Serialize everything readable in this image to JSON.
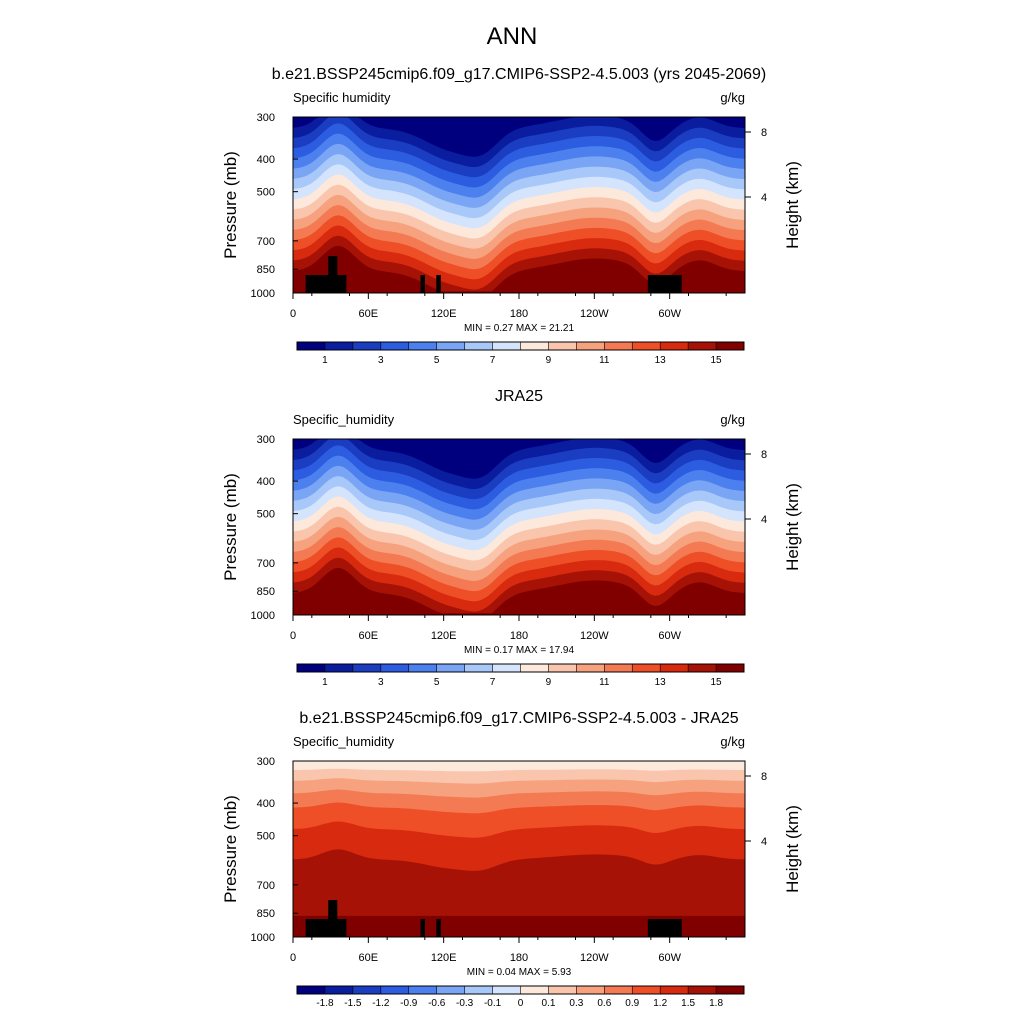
{
  "page": {
    "title": "ANN"
  },
  "chart_data": [
    {
      "type": "contour",
      "title": "b.e21.BSSP245cmip6.f09_g17.CMIP6-SSP2-4.5.003 (yrs 2045-2069)",
      "left_label": "Specific humidity",
      "right_label": "g/kg",
      "ylabel": "Pressure (mb)",
      "y2label": "Height (km)",
      "y_ticks": [
        "300",
        "400",
        "500",
        "700",
        "850",
        "1000"
      ],
      "y2_ticks": [
        "8",
        "4"
      ],
      "x_ticks": [
        "0",
        "60E",
        "120E",
        "180",
        "120W",
        "60W"
      ],
      "stats": "MIN =   0.27  MAX =  21.21",
      "field_type": "absolute",
      "colorbar": {
        "colors": [
          "#00007f",
          "#0a1d9e",
          "#1a3dc2",
          "#2c5ce0",
          "#4d80ef",
          "#7aa5f5",
          "#a8c8f9",
          "#d3e4fc",
          "#fde8dc",
          "#f9c6ad",
          "#f6a27f",
          "#f37a52",
          "#ee4f26",
          "#d72a0e",
          "#a61206",
          "#800000"
        ],
        "labels": [
          "1",
          "3",
          "5",
          "7",
          "9",
          "11",
          "13",
          "15"
        ],
        "label_positions": [
          1,
          3,
          5,
          7,
          9,
          11,
          13,
          15
        ]
      },
      "masked_regions": true
    },
    {
      "type": "contour",
      "title": "JRA25",
      "left_label": "Specific_humidity",
      "right_label": "g/kg",
      "ylabel": "Pressure (mb)",
      "y2label": "Height (km)",
      "y_ticks": [
        "300",
        "400",
        "500",
        "700",
        "850",
        "1000"
      ],
      "y2_ticks": [
        "8",
        "4"
      ],
      "x_ticks": [
        "0",
        "60E",
        "120E",
        "180",
        "120W",
        "60W"
      ],
      "stats": "MIN =   0.17  MAX =  17.94",
      "field_type": "absolute",
      "colorbar": {
        "colors": [
          "#00007f",
          "#0a1d9e",
          "#1a3dc2",
          "#2c5ce0",
          "#4d80ef",
          "#7aa5f5",
          "#a8c8f9",
          "#d3e4fc",
          "#fde8dc",
          "#f9c6ad",
          "#f6a27f",
          "#f37a52",
          "#ee4f26",
          "#d72a0e",
          "#a61206",
          "#800000"
        ],
        "labels": [
          "1",
          "3",
          "5",
          "7",
          "9",
          "11",
          "13",
          "15"
        ],
        "label_positions": [
          1,
          3,
          5,
          7,
          9,
          11,
          13,
          15
        ]
      },
      "masked_regions": false
    },
    {
      "type": "contour",
      "title": "b.e21.BSSP245cmip6.f09_g17.CMIP6-SSP2-4.5.003 - JRA25",
      "left_label": "Specific_humidity",
      "right_label": "g/kg",
      "ylabel": "Pressure (mb)",
      "y2label": "Height (km)",
      "y_ticks": [
        "300",
        "400",
        "500",
        "700",
        "850",
        "1000"
      ],
      "y2_ticks": [
        "8",
        "4"
      ],
      "x_ticks": [
        "0",
        "60E",
        "120E",
        "180",
        "120W",
        "60W"
      ],
      "stats": "MIN =   0.04  MAX =   5.93",
      "field_type": "difference",
      "colorbar": {
        "colors": [
          "#00007f",
          "#0a1d9e",
          "#1a3dc2",
          "#2c5ce0",
          "#4d80ef",
          "#7aa5f5",
          "#a8c8f9",
          "#d3e4fc",
          "#fde8dc",
          "#f9c6ad",
          "#f6a27f",
          "#f37a52",
          "#ee4f26",
          "#d72a0e",
          "#a61206",
          "#800000"
        ],
        "labels": [
          "-1.8",
          "-1.5",
          "-1.2",
          "-0.9",
          "-0.6",
          "-0.3",
          "-0.1",
          "0",
          "0.1",
          "0.3",
          "0.6",
          "0.9",
          "1.2",
          "1.5",
          "1.8"
        ],
        "label_positions": [
          1,
          2,
          3,
          4,
          5,
          6,
          7,
          8,
          9,
          10,
          11,
          12,
          13,
          14,
          15
        ]
      },
      "masked_regions": true
    }
  ]
}
